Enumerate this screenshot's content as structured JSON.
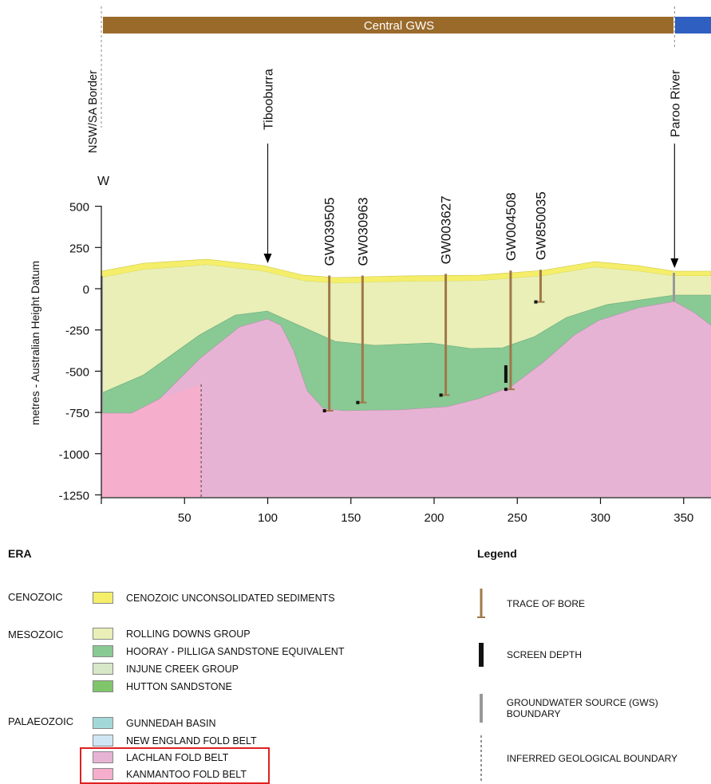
{
  "section": {
    "gws_bar_label": "Central GWS",
    "direction_label": "W",
    "y_axis_label": "metres - Australian Height Datum",
    "y_ticks": [
      "500",
      "250",
      "0",
      "-250",
      "-500",
      "-750",
      "-1000",
      "-1250"
    ],
    "x_ticks": [
      "50",
      "100",
      "150",
      "200",
      "250",
      "300",
      "350"
    ],
    "places": [
      {
        "name": "NSW/SA Border",
        "km": 0
      },
      {
        "name": "Tibooburra",
        "km": 100
      },
      {
        "name": "Paroo River",
        "km": 345
      }
    ],
    "bores": [
      {
        "id": "GW039505",
        "km": 137,
        "top_m": 80,
        "bottom_m": -740
      },
      {
        "id": "GW030963",
        "km": 157,
        "top_m": 80,
        "bottom_m": -690
      },
      {
        "id": "GW003627",
        "km": 207,
        "top_m": 90,
        "bottom_m": -645
      },
      {
        "id": "GW004508",
        "km": 246,
        "top_m": 110,
        "bottom_m": -610
      },
      {
        "id": "GW850035",
        "km": 264,
        "top_m": 115,
        "bottom_m": -80
      }
    ],
    "colors": {
      "gws_bar": "#9a6a2a",
      "gws_bar_next": "#2f5fc0",
      "cenozoic": "#f4ee6a",
      "rolling_downs": "#e9efb6",
      "hooray": "#88c994",
      "lachlan": "#e7b3d4",
      "kanmantoo": "#f5aecb",
      "bore": "#a0784a",
      "screen": "#111111",
      "gws_boundary": "#999999"
    }
  },
  "era": {
    "heading": "ERA",
    "groups": [
      {
        "name": "CENOZOIC",
        "units": [
          {
            "label": "CENOZOIC UNCONSOLIDATED SEDIMENTS",
            "color": "#f4ee6a"
          }
        ]
      },
      {
        "name": "MESOZOIC",
        "units": [
          {
            "label": "ROLLING DOWNS GROUP",
            "color": "#e9efb6"
          },
          {
            "label": "HOORAY - PILLIGA SANDSTONE EQUIVALENT",
            "color": "#88c994"
          },
          {
            "label": "INJUNE CREEK GROUP",
            "color": "#d6e8c8"
          },
          {
            "label": "HUTTON SANDSTONE",
            "color": "#7fc66b"
          }
        ]
      },
      {
        "name": "PALAEOZOIC",
        "units": [
          {
            "label": "GUNNEDAH BASIN",
            "color": "#a3d8d8"
          },
          {
            "label": "NEW ENGLAND FOLD BELT",
            "color": "#cfe6f5"
          },
          {
            "label": "LACHLAN FOLD BELT",
            "color": "#e7b3d4"
          },
          {
            "label": "KANMANTOO FOLD BELT",
            "color": "#f5aecb"
          }
        ]
      }
    ]
  },
  "legend": {
    "heading": "Legend",
    "items": [
      {
        "label": "TRACE OF BORE"
      },
      {
        "label": "SCREEN DEPTH"
      },
      {
        "label": "GROUNDWATER SOURCE (GWS) BOUNDARY"
      },
      {
        "label": "INFERRED GEOLOGICAL BOUNDARY"
      }
    ]
  }
}
